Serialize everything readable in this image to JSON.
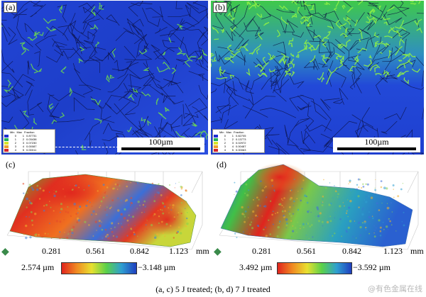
{
  "figure": {
    "panels": [
      {
        "id": "a",
        "label": "(a)",
        "kind": "ebsd-map",
        "scale_label": "100µm",
        "legend": {
          "headers": [
            "Min",
            "Max",
            "Fraction"
          ],
          "rows": [
            {
              "min": "0",
              "max": "1",
              "fraction": "0.87731",
              "color": "#1e2fd0"
            },
            {
              "min": "1",
              "max": "2",
              "fraction": "0.03438",
              "color": "#22b15a"
            },
            {
              "min": "2",
              "max": "3",
              "fraction": "0.07230",
              "color": "#d9e62a"
            },
            {
              "min": "3",
              "max": "4",
              "fraction": "0.00087",
              "color": "#f0a22a"
            },
            {
              "min": "4",
              "max": "5",
              "fraction": "0.00011",
              "color": "#d6262a"
            }
          ]
        }
      },
      {
        "id": "b",
        "label": "(b)",
        "kind": "ebsd-map",
        "scale_label": "100µm",
        "legend": {
          "headers": [
            "Min",
            "Max",
            "Fraction"
          ],
          "rows": [
            {
              "min": "0",
              "max": "1",
              "fraction": "0.82705",
              "color": "#1e2fd0"
            },
            {
              "min": "1",
              "max": "2",
              "fraction": "0.13773",
              "color": "#22b15a"
            },
            {
              "min": "2",
              "max": "3",
              "fraction": "0.02972",
              "color": "#d9e62a"
            },
            {
              "min": "3",
              "max": "4",
              "fraction": "0.00487",
              "color": "#f0a22a"
            },
            {
              "min": "4",
              "max": "5",
              "fraction": "0.00063",
              "color": "#d6262a"
            }
          ]
        }
      },
      {
        "id": "c",
        "label": "(c)",
        "kind": "3d-surface",
        "x_ticks": [
          "0.281",
          "0.561",
          "0.842",
          "1.123"
        ],
        "x_unit": "mm",
        "colorbar": {
          "max": "2.574 µm",
          "min": "−3.148 µm"
        }
      },
      {
        "id": "d",
        "label": "(d)",
        "kind": "3d-surface",
        "x_ticks": [
          "0.281",
          "0.561",
          "0.842",
          "1.123"
        ],
        "x_unit": "mm",
        "colorbar": {
          "max": "3.492 µm",
          "min": "−3.592 µm"
        }
      }
    ],
    "caption": "(a, c) 5 J treated; (b, d) 7 J treated",
    "watermark": "@有色金属在线",
    "colors": {
      "map_blue": "#1f45d8",
      "map_green": "#36d24a",
      "surface_red": "#e0241e",
      "surface_blue": "#1f3fbf"
    }
  }
}
